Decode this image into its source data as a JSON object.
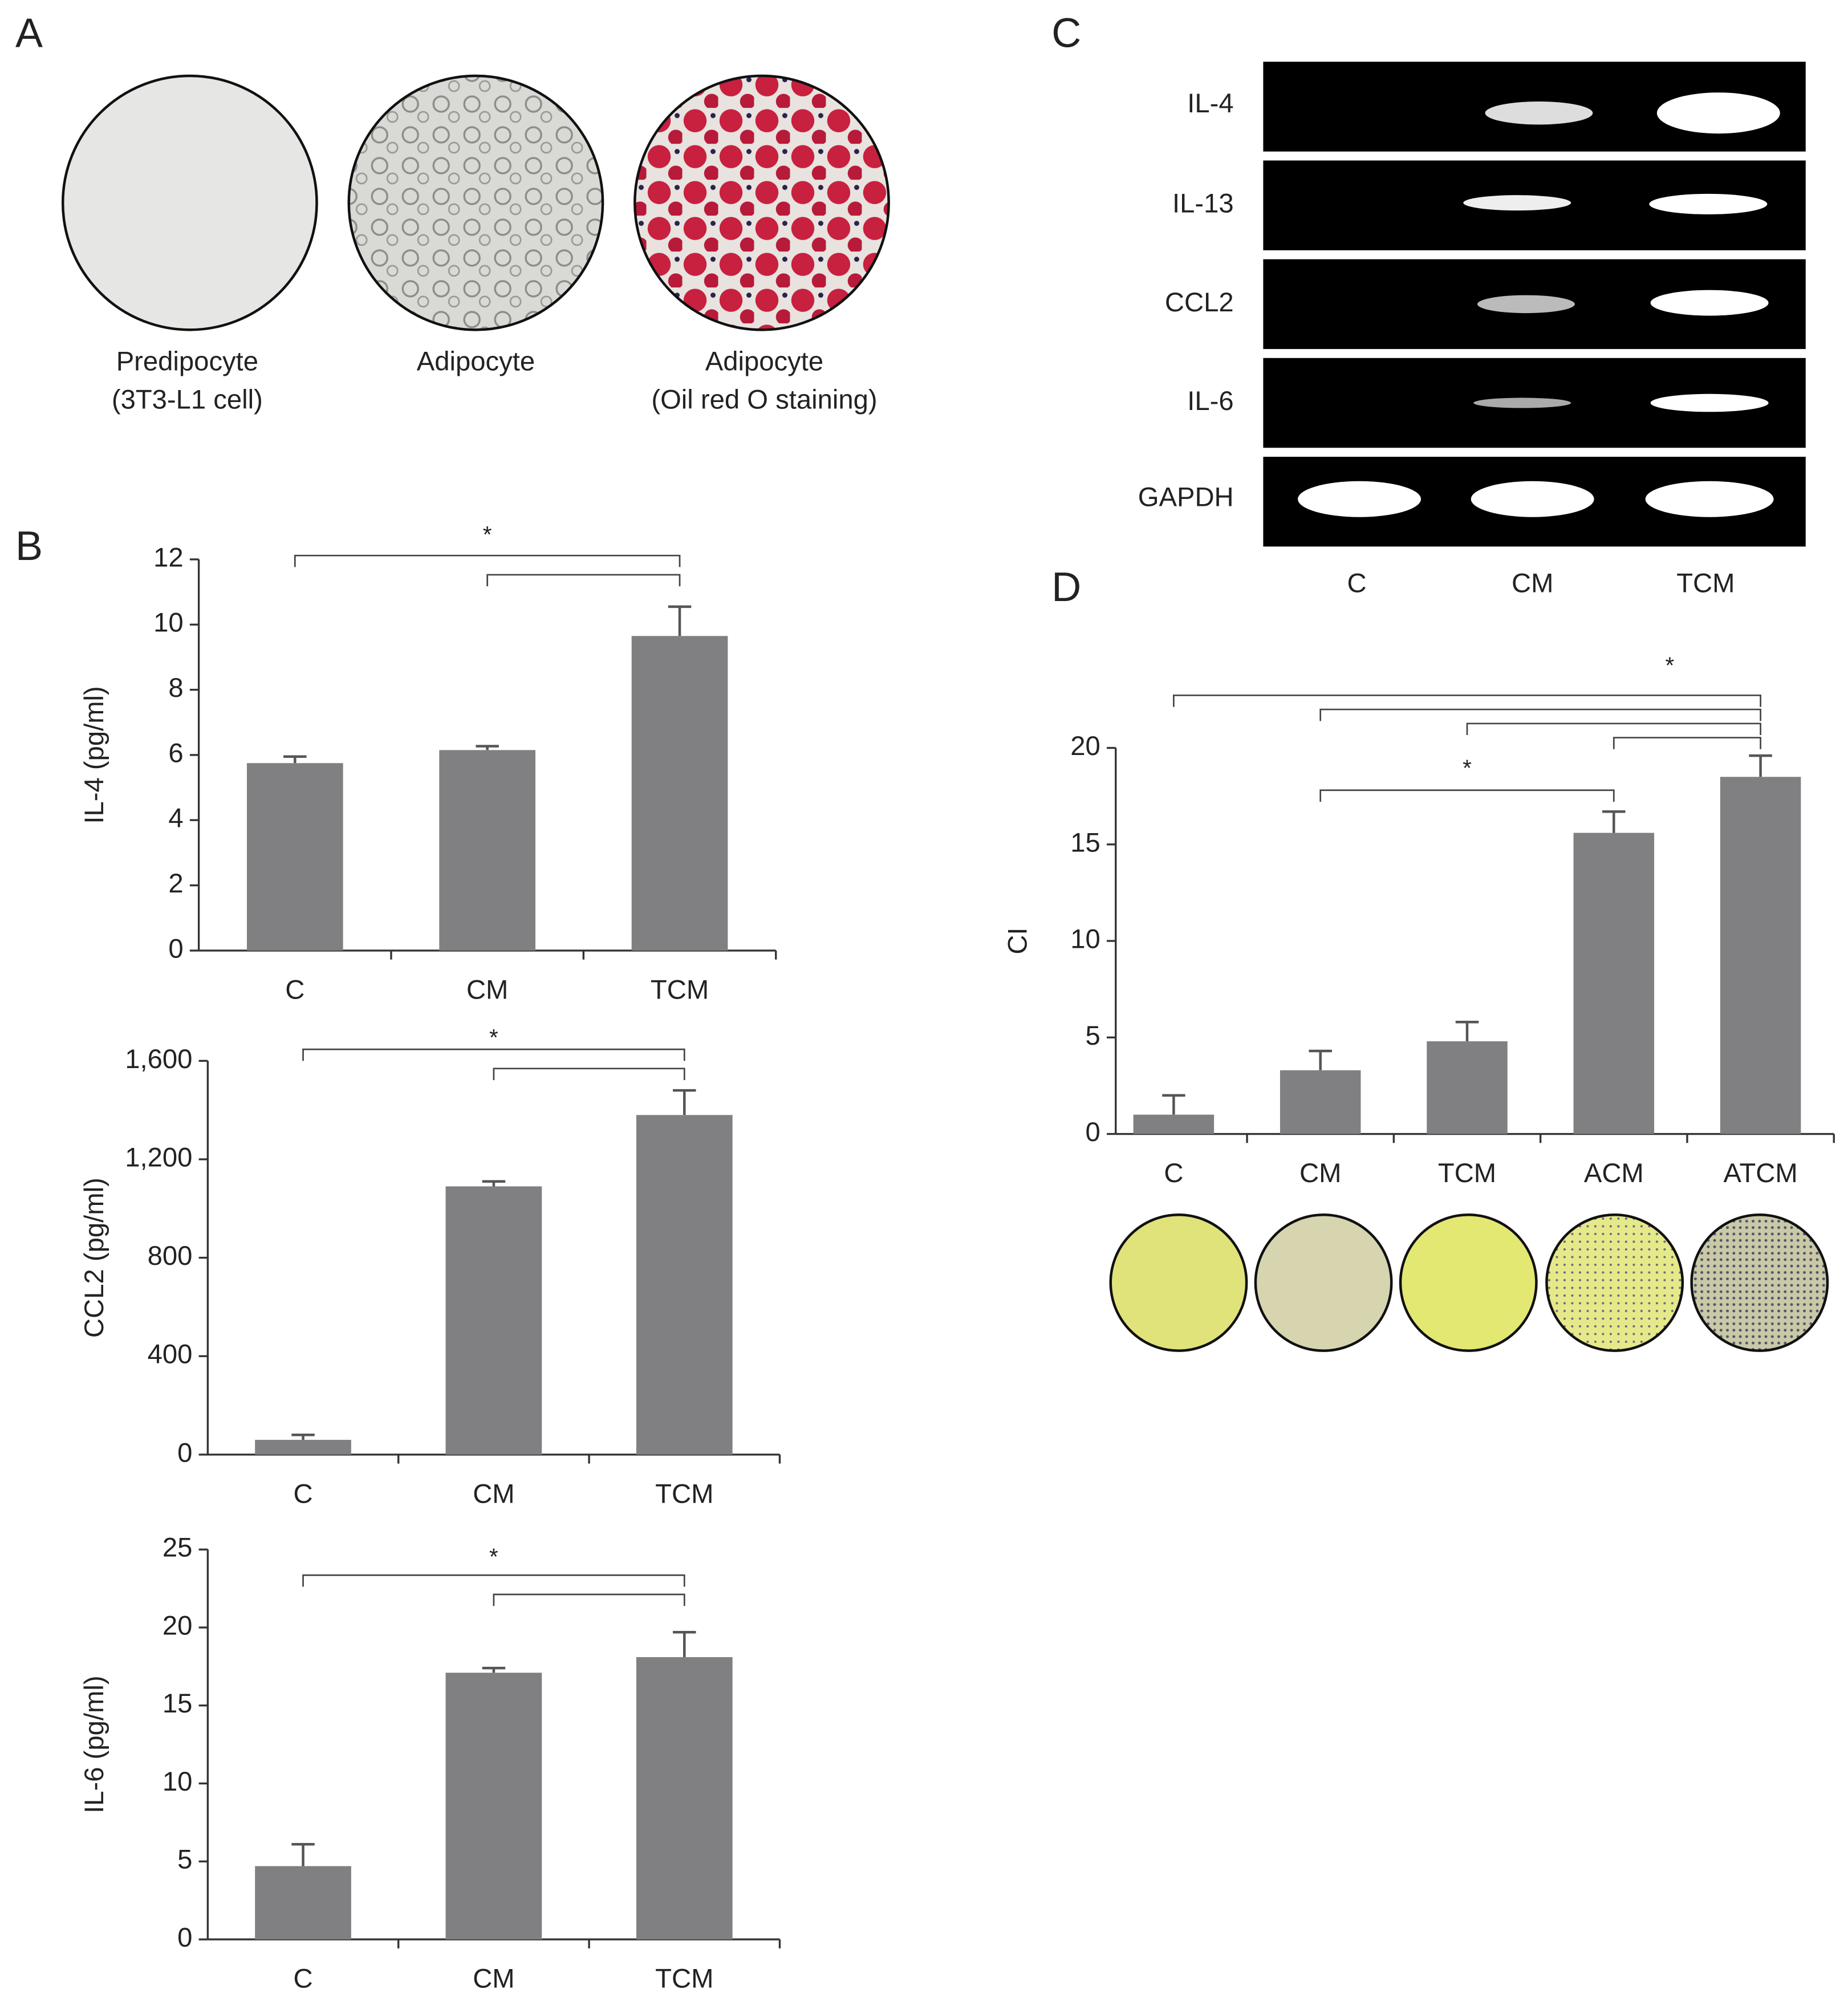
{
  "panels": {
    "A": {
      "letter": "A",
      "captions": [
        [
          "Predipocyte",
          "(3T3-L1 cell)"
        ],
        [
          "Adipocyte"
        ],
        [
          "Adipocyte",
          "(Oil red O staining)"
        ]
      ]
    },
    "B": {
      "letter": "B"
    },
    "C": {
      "letter": "C",
      "rows": [
        "IL-4",
        "IL-13",
        "CCL2",
        "IL-6",
        "GAPDH"
      ],
      "columns": [
        "C",
        "CM",
        "TCM"
      ]
    },
    "D": {
      "letter": "D"
    }
  },
  "chart_data": [
    {
      "type": "bar",
      "y_label": "IL-4 (pg/ml)",
      "categories": [
        "C",
        "CM",
        "TCM"
      ],
      "series": [
        {
          "color": "#808083",
          "values": [
            5.75,
            6.15,
            9.65
          ],
          "errors": [
            0.2,
            0.12,
            0.9
          ]
        }
      ],
      "ylim": [
        0,
        12
      ],
      "yticks": [
        0,
        2,
        4,
        6,
        8,
        10,
        12
      ],
      "significance": [
        {
          "label": "*",
          "brackets": [
            [
              "C",
              "TCM"
            ],
            [
              "CM",
              "TCM"
            ]
          ]
        }
      ]
    },
    {
      "type": "bar",
      "y_label": "CCL2 (pg/ml)",
      "categories": [
        "C",
        "CM",
        "TCM"
      ],
      "series": [
        {
          "color": "#808083",
          "values": [
            60,
            1090,
            1380
          ],
          "errors": [
            20,
            20,
            100
          ]
        }
      ],
      "ylim": [
        0,
        1600
      ],
      "yticks": [
        0,
        400,
        800,
        {
          "value": 1200,
          "label": "1,200"
        },
        {
          "value": 1600,
          "label": "1,600"
        }
      ],
      "significance": [
        {
          "label": "*",
          "brackets": [
            [
              "C",
              "TCM"
            ],
            [
              "CM",
              "TCM"
            ]
          ]
        }
      ]
    },
    {
      "type": "bar",
      "y_label": "IL-6 (pg/ml)",
      "categories": [
        "C",
        "CM",
        "TCM"
      ],
      "series": [
        {
          "color": "#808083",
          "values": [
            4.7,
            17.1,
            18.1
          ],
          "errors": [
            1.4,
            0.3,
            1.6
          ]
        }
      ],
      "ylim": [
        0,
        25
      ],
      "yticks": [
        0,
        5,
        10,
        15,
        20,
        25
      ],
      "significance": [
        {
          "label": "*",
          "brackets": [
            [
              "C",
              "TCM"
            ],
            [
              "CM",
              "TCM"
            ]
          ]
        }
      ]
    },
    {
      "type": "bar",
      "y_label": "CI",
      "categories": [
        "C",
        "CM",
        "TCM",
        "ACM",
        "ATCM"
      ],
      "series": [
        {
          "color": "#808083",
          "values": [
            1.0,
            3.3,
            4.8,
            15.6,
            18.5
          ],
          "errors": [
            1.0,
            1.0,
            1.0,
            1.1,
            1.1
          ]
        }
      ],
      "ylim": [
        0,
        20
      ],
      "yticks": [
        0,
        5,
        10,
        15,
        20
      ],
      "significance": [
        {
          "label": "*",
          "brackets": [
            [
              "C",
              "ATCM"
            ],
            [
              "CM",
              "ATCM"
            ],
            [
              "TCM",
              "ATCM"
            ],
            [
              "ACM",
              "ATCM"
            ]
          ]
        },
        {
          "label": "*",
          "brackets": [
            [
              "CM",
              "ACM"
            ]
          ]
        }
      ]
    }
  ]
}
